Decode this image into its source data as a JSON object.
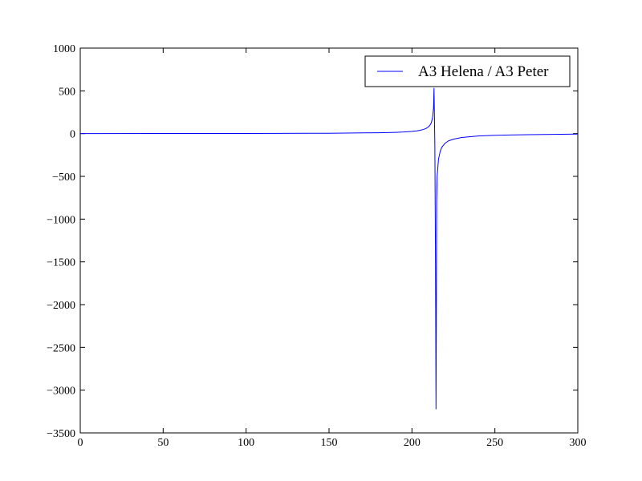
{
  "chart_data": {
    "type": "line",
    "title": "",
    "xlabel": "",
    "ylabel": "",
    "xlim": [
      0,
      300
    ],
    "ylim": [
      -3500,
      1000
    ],
    "xticks": [
      0,
      50,
      100,
      150,
      200,
      250,
      300
    ],
    "xtick_labels": [
      "0",
      "50",
      "100",
      "150",
      "200",
      "250",
      "300"
    ],
    "yticks": [
      1000,
      500,
      0,
      -500,
      -1000,
      -1500,
      -2000,
      -2500,
      -3000,
      -3500
    ],
    "ytick_labels": [
      "1000",
      "500",
      "0",
      "−500",
      "−1000",
      "−1500",
      "−2000",
      "−2500",
      "−3000",
      "−3500"
    ],
    "grid": false,
    "legend_position": "top-right",
    "series": [
      {
        "name": "A3 Helena / A3 Peter",
        "color": "#0000ff",
        "x": [
          0,
          50,
          100,
          150,
          170,
          180,
          190,
          195,
          200,
          203,
          205,
          207,
          208,
          209,
          210,
          211,
          211.5,
          212,
          212.5,
          213,
          213.3,
          213.8,
          214.2,
          214.5,
          214.7,
          214.9,
          215.2,
          215.6,
          216,
          217,
          218,
          220,
          222,
          225,
          230,
          240,
          250,
          270,
          300
        ],
        "y": [
          0,
          1,
          2,
          4,
          8,
          10,
          15,
          19,
          26,
          32,
          39,
          49,
          56,
          66,
          80,
          103,
          120,
          150,
          200,
          300,
          530,
          -120,
          -1500,
          -3220,
          -2200,
          -800,
          -500,
          -400,
          -300,
          -210,
          -160,
          -112,
          -85,
          -65,
          -45,
          -28,
          -20,
          -12,
          -5
        ]
      }
    ]
  }
}
